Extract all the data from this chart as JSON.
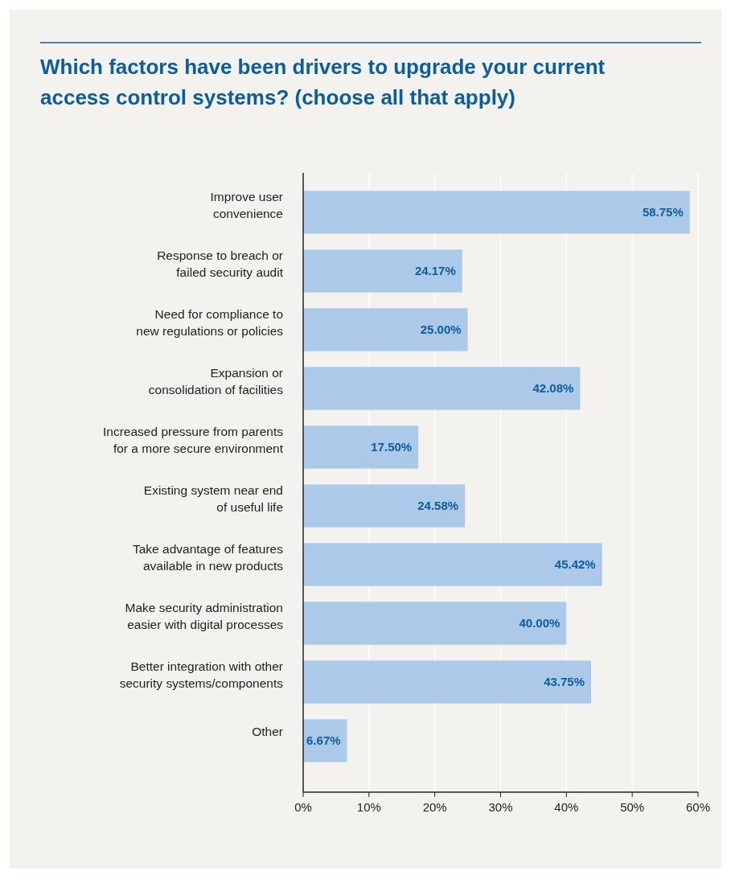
{
  "chart_data": {
    "type": "bar",
    "orientation": "horizontal",
    "title": "Which factors have been drivers to upgrade your current\naccess control systems? (choose all that apply)",
    "categories": [
      "Improve user\nconvenience",
      "Response to breach or\nfailed security audit",
      "Need for compliance to\nnew regulations or policies",
      "Expansion or\nconsolidation of facilities",
      "Increased pressure from parents\nfor a more secure environment",
      "Existing system near end\nof useful life",
      "Take advantage of features\navailable in new products",
      "Make security administration\neasier with digital processes",
      "Better integration with other\nsecurity systems/components",
      "Other"
    ],
    "values": [
      58.75,
      24.17,
      25.0,
      42.08,
      17.5,
      24.58,
      45.42,
      40.0,
      43.75,
      6.67
    ],
    "value_labels": [
      "58.75%",
      "24.17%",
      "25.00%",
      "42.08%",
      "17.50%",
      "24.58%",
      "45.42%",
      "40.00%",
      "43.75%",
      "6.67%"
    ],
    "color": "#adc9e9",
    "xlim": [
      0,
      60
    ],
    "xticks": [
      {
        "value": 0,
        "label": "0%"
      },
      {
        "value": 10,
        "label": "10%"
      },
      {
        "value": 20,
        "label": "20%"
      },
      {
        "value": 30,
        "label": "30%"
      },
      {
        "value": 40,
        "label": "40%"
      },
      {
        "value": 50,
        "label": "50%"
      },
      {
        "value": 60,
        "label": "60%"
      }
    ],
    "grid": "x"
  }
}
